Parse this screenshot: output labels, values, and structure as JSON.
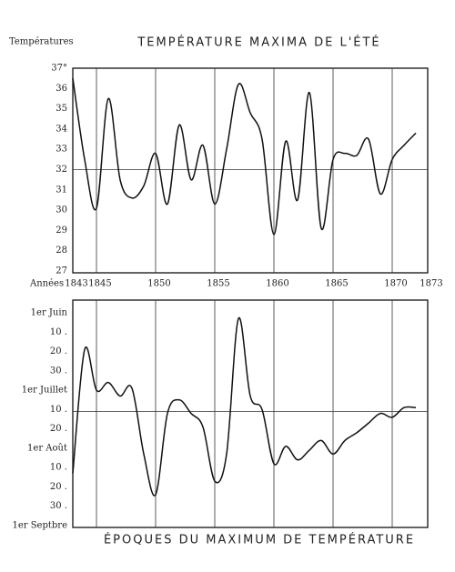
{
  "chart_data": [
    {
      "type": "line",
      "title": "TEMPÉRATURE MAXIMA DE L'ÉTÉ",
      "ylabel": "Températures",
      "xlabel": "Années",
      "x": [
        1843,
        1844,
        1845,
        1846,
        1847,
        1848,
        1849,
        1850,
        1851,
        1852,
        1853,
        1854,
        1855,
        1856,
        1857,
        1858,
        1859,
        1860,
        1861,
        1862,
        1863,
        1864,
        1865,
        1866,
        1867,
        1868,
        1869,
        1870,
        1871,
        1872
      ],
      "values": [
        36.5,
        32.5,
        30.1,
        35.5,
        31.5,
        30.6,
        31.2,
        32.8,
        30.3,
        34.2,
        31.5,
        33.2,
        30.3,
        33.0,
        36.2,
        34.8,
        33.5,
        28.8,
        33.4,
        30.5,
        35.8,
        29.1,
        32.5,
        32.8,
        32.7,
        33.5,
        30.8,
        32.5,
        33.2,
        33.8
      ],
      "color": "#111",
      "xlim": [
        1843,
        1873
      ],
      "xticks": [
        1843,
        1845,
        1850,
        1855,
        1860,
        1865,
        1870,
        1873
      ],
      "ylim": [
        27,
        37
      ],
      "yticks": [
        {
          "value": 37,
          "label": "37°"
        },
        36,
        35,
        34,
        33,
        32,
        31,
        30,
        29,
        28,
        27
      ],
      "reference": 32,
      "grid": true
    },
    {
      "type": "line",
      "title": "ÉPOQUES DU MAXIMUM DE TEMPÉRATURE",
      "x": [
        1843,
        1844,
        1845,
        1846,
        1847,
        1848,
        1849,
        1850,
        1851,
        1852,
        1853,
        1854,
        1855,
        1856,
        1857,
        1858,
        1859,
        1860,
        1861,
        1862,
        1863,
        1864,
        1865,
        1866,
        1867,
        1868,
        1869,
        1870,
        1871,
        1872
      ],
      "values": [
        8.3,
        1.9,
        4.0,
        3.6,
        4.3,
        3.9,
        7.3,
        9.4,
        5.2,
        4.5,
        5.2,
        5.9,
        8.7,
        7.3,
        0.3,
        4.3,
        5.0,
        7.8,
        6.9,
        7.6,
        7.1,
        6.6,
        7.3,
        6.6,
        6.2,
        5.7,
        5.2,
        5.4,
        4.9,
        4.9
      ],
      "color": "#111",
      "xlim": [
        1843,
        1873
      ],
      "ylim": [
        0,
        11
      ],
      "inverted": true,
      "yticks": [
        {
          "value": 0,
          "label": "1er Juin"
        },
        {
          "value": 1,
          "label": "10 ."
        },
        {
          "value": 2,
          "label": "20 ."
        },
        {
          "value": 3,
          "label": "30 ."
        },
        {
          "value": 4,
          "label": "1er Juillet"
        },
        {
          "value": 5,
          "label": "10 ."
        },
        {
          "value": 6,
          "label": "20 ."
        },
        {
          "value": 7,
          "label": "1er Août"
        },
        {
          "value": 8,
          "label": "10 ."
        },
        {
          "value": 9,
          "label": "20 ."
        },
        {
          "value": 10,
          "label": "30 ."
        },
        {
          "value": 11,
          "label": "1er Septbre"
        }
      ],
      "reference": 5.1,
      "grid": true
    }
  ]
}
